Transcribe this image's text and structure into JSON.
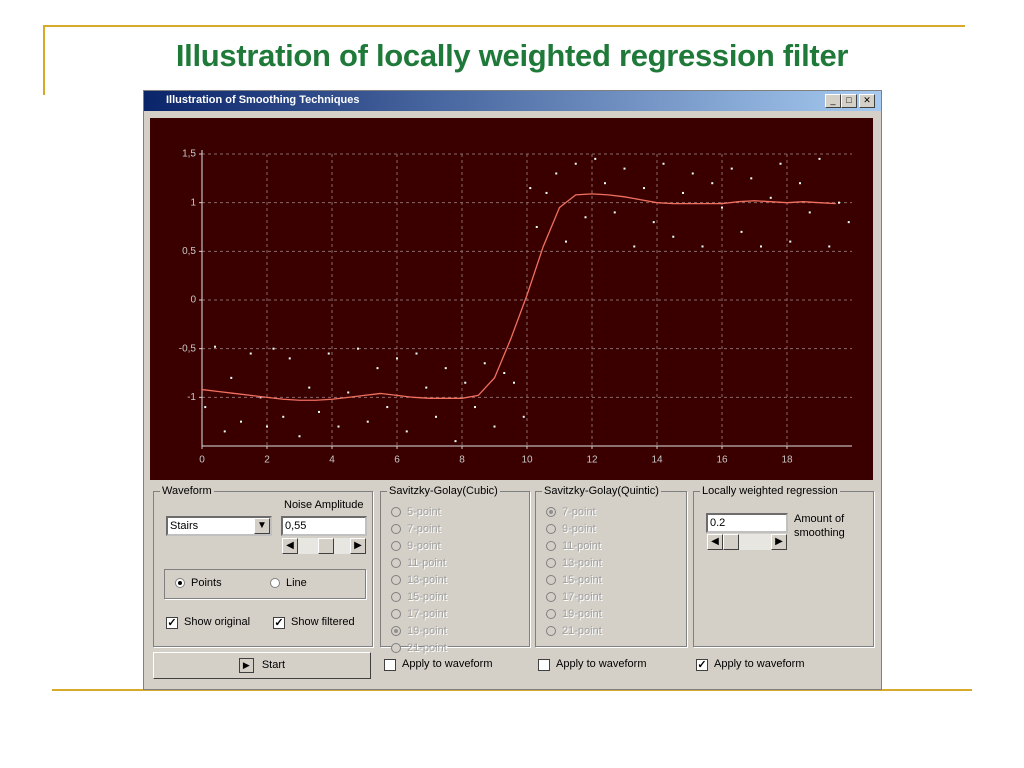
{
  "slide": {
    "title": "Illustration of locally weighted regression filter"
  },
  "window": {
    "title": "Illustration of Smoothing Techniques"
  },
  "chart_data": {
    "type": "scatter",
    "xlim": [
      0,
      20
    ],
    "ylim": [
      -1.5,
      1.5
    ],
    "xticks": [
      0,
      2,
      4,
      6,
      8,
      10,
      12,
      14,
      16,
      18
    ],
    "yticks": [
      {
        "value": 1.5,
        "label": "1,5"
      },
      1,
      {
        "value": 0.5,
        "label": "0,5"
      },
      0,
      {
        "value": -0.5,
        "label": "-0,5"
      },
      -1
    ],
    "grid": true,
    "series": [
      {
        "style": "points",
        "color": "#e8fff8",
        "x": [
          0.1,
          0.4,
          0.7,
          0.9,
          1.2,
          1.5,
          1.8,
          2.0,
          2.2,
          2.5,
          2.7,
          3.0,
          3.3,
          3.6,
          3.9,
          4.2,
          4.5,
          4.8,
          5.1,
          5.4,
          5.7,
          6.0,
          6.3,
          6.6,
          6.9,
          7.2,
          7.5,
          7.8,
          8.1,
          8.4,
          8.7,
          9.0,
          9.3,
          9.6,
          9.9,
          10.1,
          10.3,
          10.6,
          10.9,
          11.2,
          11.5,
          11.8,
          12.1,
          12.4,
          12.7,
          13.0,
          13.3,
          13.6,
          13.9,
          14.2,
          14.5,
          14.8,
          15.1,
          15.4,
          15.7,
          16.0,
          16.3,
          16.6,
          16.9,
          17.2,
          17.5,
          17.8,
          18.1,
          18.4,
          18.7,
          19.0,
          19.3,
          19.6,
          19.9
        ],
        "values": [
          -1.1,
          -0.48,
          -1.35,
          -0.8,
          -1.25,
          -0.55,
          -1.0,
          -1.3,
          -0.5,
          -1.2,
          -0.6,
          -1.4,
          -0.9,
          -1.15,
          -0.55,
          -1.3,
          -0.95,
          -0.5,
          -1.25,
          -0.7,
          -1.1,
          -0.6,
          -1.35,
          -0.55,
          -0.9,
          -1.2,
          -0.7,
          -1.45,
          -0.85,
          -1.1,
          -0.65,
          -1.3,
          -0.75,
          -0.85,
          -1.2,
          1.15,
          0.75,
          1.1,
          1.3,
          0.6,
          1.4,
          0.85,
          1.45,
          1.2,
          0.9,
          1.35,
          0.55,
          1.15,
          0.8,
          1.4,
          0.65,
          1.1,
          1.3,
          0.55,
          1.2,
          0.95,
          1.35,
          0.7,
          1.25,
          0.55,
          1.05,
          1.4,
          0.6,
          1.2,
          0.9,
          1.45,
          0.55,
          1.0,
          0.8
        ]
      },
      {
        "style": "line",
        "color": "#f07060",
        "x": [
          0,
          0.5,
          1,
          1.5,
          2,
          2.5,
          3,
          3.5,
          4,
          4.5,
          5,
          5.5,
          6,
          6.5,
          7,
          7.5,
          8,
          8.5,
          9,
          9.5,
          10,
          10.5,
          11,
          11.5,
          12,
          12.5,
          13,
          13.5,
          14,
          14.5,
          15,
          15.5,
          16,
          16.5,
          17,
          17.5,
          18,
          18.5,
          19,
          19.5
        ],
        "values": [
          -0.92,
          -0.94,
          -0.96,
          -0.98,
          -1.0,
          -1.02,
          -1.03,
          -1.03,
          -1.02,
          -1.0,
          -0.98,
          -0.96,
          -0.98,
          -1.0,
          -1.01,
          -1.01,
          -1.01,
          -0.98,
          -0.8,
          -0.4,
          0.05,
          0.55,
          0.95,
          1.08,
          1.09,
          1.08,
          1.06,
          1.03,
          1.0,
          0.99,
          0.99,
          0.99,
          0.99,
          1.01,
          1.02,
          1.01,
          1.0,
          1.01,
          1.0,
          0.99
        ]
      }
    ]
  },
  "waveform": {
    "label": "Waveform",
    "select": "Stairs",
    "noise_label": "Noise Amplitude",
    "noise_value": "0,55",
    "modes": [
      "Points",
      "Line"
    ],
    "mode_selected": 0,
    "checks": [
      {
        "label": "Show original",
        "checked": true
      },
      {
        "label": "Show filtered",
        "checked": true
      }
    ]
  },
  "cubic": {
    "label": "Savitzky-Golay(Cubic)",
    "options": [
      "5-point",
      "7-point",
      "9-point",
      "11-point",
      "13-point",
      "15-point",
      "17-point",
      "19-point",
      "21-point"
    ],
    "selected": 7
  },
  "quintic": {
    "label": "Savitzky-Golay(Quintic)",
    "options": [
      "7-point",
      "9-point",
      "11-point",
      "13-point",
      "15-point",
      "17-point",
      "19-point",
      "21-point"
    ],
    "selected": 0
  },
  "lwr": {
    "label": "Locally weighted regression",
    "value": "0.2",
    "amount_label": "Amount of smoothing"
  },
  "start": "Start",
  "apply": [
    {
      "label": "Apply to waveform",
      "checked": false
    },
    {
      "label": "Apply to waveform",
      "checked": false
    },
    {
      "label": "Apply to waveform",
      "checked": true
    }
  ]
}
